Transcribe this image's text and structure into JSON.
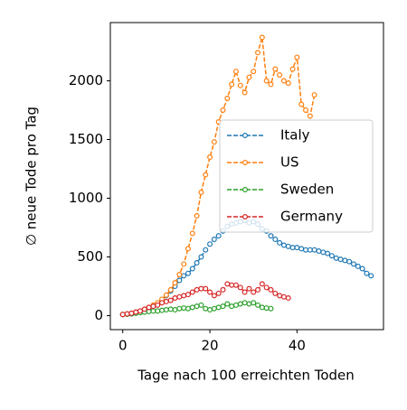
{
  "chart_data": {
    "type": "line",
    "xlabel": "Tage nach 100 erreichten Toden",
    "ylabel": "∅ neue Tode pro Tag",
    "x": [
      0,
      1,
      2,
      3,
      4,
      5,
      6,
      7,
      8,
      9,
      10,
      11,
      12,
      13,
      14,
      15,
      16,
      17,
      18,
      19,
      20,
      21,
      22,
      23,
      24,
      25,
      26,
      27,
      28,
      29,
      30,
      31,
      32,
      33,
      34,
      35,
      36,
      37,
      38,
      39,
      40,
      41,
      42,
      43,
      44,
      45,
      46,
      47,
      48,
      49,
      50,
      51,
      52,
      53,
      54,
      55,
      56,
      57
    ],
    "series": [
      {
        "name": "Italy",
        "color": "#1f77b4",
        "values": [
          10,
          15,
          20,
          30,
          40,
          50,
          65,
          80,
          100,
          130,
          170,
          210,
          250,
          300,
          340,
          360,
          400,
          450,
          500,
          560,
          610,
          650,
          680,
          720,
          760,
          780,
          790,
          800,
          810,
          790,
          800,
          780,
          740,
          720,
          680,
          650,
          620,
          600,
          590,
          580,
          580,
          570,
          560,
          560,
          560,
          550,
          540,
          530,
          510,
          490,
          480,
          470,
          460,
          440,
          420,
          400,
          360,
          340
        ]
      },
      {
        "name": "US",
        "color": "#ff7f0e",
        "values": [
          10,
          15,
          20,
          30,
          40,
          55,
          70,
          90,
          110,
          140,
          175,
          220,
          280,
          350,
          440,
          570,
          700,
          850,
          1050,
          1200,
          1350,
          1480,
          1650,
          1750,
          1850,
          1970,
          2080,
          1960,
          1900,
          2030,
          2080,
          2240,
          2370,
          2000,
          1970,
          2100,
          2050,
          2000,
          1980,
          2100,
          2200,
          1800,
          1750,
          1700,
          1880,
          null,
          null,
          null,
          null,
          null,
          null,
          null,
          null,
          null,
          null,
          null,
          null,
          null
        ]
      },
      {
        "name": "Sweden",
        "color": "#2ca02c",
        "values": [
          10,
          12,
          15,
          20,
          25,
          30,
          35,
          40,
          40,
          45,
          50,
          55,
          50,
          60,
          65,
          60,
          70,
          80,
          90,
          60,
          50,
          60,
          70,
          80,
          100,
          80,
          90,
          100,
          110,
          100,
          110,
          90,
          70,
          65,
          60,
          null,
          null,
          null,
          null,
          null,
          null,
          null,
          null,
          null,
          null,
          null,
          null,
          null,
          null,
          null,
          null,
          null,
          null,
          null,
          null,
          null,
          null,
          null
        ]
      },
      {
        "name": "Germany",
        "color": "#d62728",
        "values": [
          10,
          15,
          20,
          30,
          40,
          55,
          70,
          80,
          90,
          110,
          120,
          130,
          150,
          160,
          170,
          180,
          200,
          220,
          230,
          230,
          200,
          170,
          190,
          220,
          270,
          260,
          260,
          240,
          200,
          230,
          200,
          220,
          270,
          240,
          220,
          190,
          170,
          160,
          150,
          null,
          null,
          null,
          null,
          null,
          null,
          null,
          null,
          null,
          null,
          null,
          null,
          null,
          null,
          null,
          null,
          null,
          null,
          null
        ]
      }
    ],
    "xlim": [
      -2.85,
      59.85
    ],
    "xticks": [
      0,
      20,
      40
    ],
    "ylim": [
      -119,
      2496
    ],
    "yticks": [
      0,
      500,
      1000,
      1500,
      2000
    ],
    "legend": "center right"
  }
}
